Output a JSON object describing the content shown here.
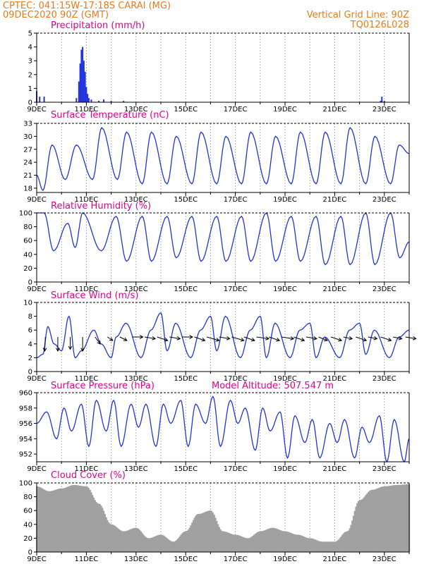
{
  "header": {
    "line1": "CPTEC:   041:15W-17:18S   CARAI (MG)",
    "line2": "09DEC2020 90Z (GMT)",
    "grid_note": "Vertical Grid Line: 90Z",
    "code": "TQ0126L028"
  },
  "colors": {
    "header": "#e87a1c",
    "title": "#e8008a",
    "series": "#2233dd",
    "cloud": "#a0a0a0",
    "grid": "#999999"
  },
  "x_labels": [
    "9DEC",
    "11DEC",
    "13DEC",
    "15DEC",
    "17DEC",
    "19DEC",
    "21DEC",
    "23DEC"
  ],
  "chart_data": [
    {
      "type": "bar",
      "title": "Precipitation (mm/h)",
      "ylim": [
        0,
        5
      ],
      "yticks": [
        0,
        1,
        2,
        3,
        4,
        5
      ],
      "x_days": [
        0.0,
        0.12,
        0.3,
        1.6,
        1.7,
        1.75,
        1.8,
        1.85,
        1.9,
        1.95,
        2.0,
        2.05,
        2.1,
        2.2,
        2.5,
        2.7,
        3.0,
        3.5,
        13.85,
        13.9,
        14.0
      ],
      "values": [
        0.8,
        0.4,
        0.4,
        0.3,
        1.5,
        2.8,
        3.8,
        4.0,
        3.0,
        2.2,
        1.1,
        0.6,
        0.3,
        0.2,
        0.1,
        0.2,
        0.1,
        0.1,
        0.1,
        0.4,
        0.1
      ]
    },
    {
      "type": "line",
      "title": "Surface Temperature (nC)",
      "ylim": [
        17,
        33
      ],
      "yticks": [
        18,
        21,
        24,
        27,
        30,
        33
      ],
      "extrema_days": [
        0.0,
        0.25,
        0.62,
        1.15,
        1.6,
        2.25,
        2.62,
        3.25,
        3.62,
        4.25,
        4.62,
        5.25,
        5.62,
        6.25,
        6.62,
        7.25,
        7.62,
        8.25,
        8.62,
        9.25,
        9.62,
        10.25,
        10.62,
        11.25,
        11.62,
        12.25,
        12.62,
        13.25,
        13.62,
        14.25,
        14.6,
        15.0
      ],
      "extrema_values": [
        21,
        17.5,
        28,
        20,
        28,
        20,
        32,
        20,
        31,
        19,
        31,
        19,
        30,
        19,
        31,
        19,
        30,
        19,
        31,
        19,
        30,
        19,
        31,
        19,
        31,
        19,
        32,
        19,
        30,
        19,
        28,
        26
      ]
    },
    {
      "type": "line",
      "title": "Relative Humidity (%)",
      "ylim": [
        0,
        100
      ],
      "yticks": [
        0,
        20,
        40,
        60,
        80,
        100
      ],
      "extrema_days": [
        0.0,
        0.3,
        0.68,
        1.25,
        1.55,
        1.85,
        2.6,
        3.2,
        3.62,
        4.25,
        4.62,
        5.25,
        5.62,
        6.25,
        6.62,
        7.25,
        7.62,
        8.25,
        8.62,
        9.25,
        9.62,
        10.25,
        10.62,
        11.25,
        11.62,
        12.25,
        12.62,
        13.25,
        13.62,
        14.25,
        14.62,
        15.0
      ],
      "extrema_values": [
        100,
        100,
        45,
        85,
        50,
        100,
        45,
        95,
        30,
        95,
        30,
        95,
        35,
        95,
        30,
        95,
        30,
        95,
        30,
        100,
        30,
        95,
        30,
        95,
        25,
        95,
        25,
        100,
        25,
        100,
        35,
        58
      ]
    },
    {
      "type": "line",
      "title": "Surface Wind (m/s)",
      "ylim": [
        0,
        10
      ],
      "yticks": [
        0,
        2,
        4,
        6,
        8,
        10
      ],
      "extrema_days": [
        0.0,
        0.25,
        0.45,
        0.7,
        1.0,
        1.3,
        1.55,
        1.8,
        2.3,
        2.6,
        3.0,
        3.2,
        3.6,
        4.2,
        4.6,
        5.0,
        5.25,
        5.6,
        6.2,
        6.6,
        7.0,
        7.25,
        7.6,
        8.2,
        8.6,
        9.0,
        9.25,
        9.6,
        10.2,
        10.6,
        11.0,
        11.25,
        11.6,
        12.2,
        12.6,
        13.0,
        13.25,
        13.6,
        14.2,
        14.6,
        15.0
      ],
      "extrema_values": [
        2,
        2.5,
        6.5,
        4,
        3,
        8,
        2,
        3,
        6,
        4,
        2,
        5,
        7,
        2,
        6,
        8.5,
        3,
        7,
        2,
        6,
        8,
        3,
        8,
        2,
        6,
        8,
        2,
        7,
        2,
        6,
        7,
        2,
        5,
        2,
        6,
        7,
        2.5,
        6,
        2,
        5,
        6
      ],
      "arrows": [
        {
          "day": 0.35,
          "u": -0.2,
          "v": -4.0
        },
        {
          "day": 0.85,
          "u": 0.0,
          "v": -4.0
        },
        {
          "day": 1.35,
          "u": 0.0,
          "v": -3.5
        },
        {
          "day": 1.85,
          "u": 0.0,
          "v": -4.0
        },
        {
          "day": 2.35,
          "u": 1.5,
          "v": -2.0
        },
        {
          "day": 2.85,
          "u": 1.5,
          "v": -1.0
        },
        {
          "day": 3.35,
          "u": 2.0,
          "v": -1.0
        },
        {
          "day": 3.85,
          "u": 3.0,
          "v": 0.0
        },
        {
          "day": 4.35,
          "u": 3.0,
          "v": -0.5
        },
        {
          "day": 4.85,
          "u": 3.0,
          "v": -1.0
        },
        {
          "day": 5.35,
          "u": 3.0,
          "v": -0.5
        },
        {
          "day": 5.85,
          "u": 3.0,
          "v": 0.0
        },
        {
          "day": 6.35,
          "u": 3.0,
          "v": -1.0
        },
        {
          "day": 6.85,
          "u": 3.5,
          "v": -1.0
        },
        {
          "day": 7.35,
          "u": 3.0,
          "v": -0.5
        },
        {
          "day": 7.85,
          "u": 3.5,
          "v": -1.0
        },
        {
          "day": 8.35,
          "u": 3.0,
          "v": -1.0
        },
        {
          "day": 8.85,
          "u": 3.5,
          "v": -0.5
        },
        {
          "day": 9.35,
          "u": 3.0,
          "v": -1.0
        },
        {
          "day": 9.85,
          "u": 3.5,
          "v": -0.5
        },
        {
          "day": 10.35,
          "u": 3.0,
          "v": -1.0
        },
        {
          "day": 10.85,
          "u": 3.0,
          "v": -0.5
        },
        {
          "day": 11.35,
          "u": 2.5,
          "v": -1.0
        },
        {
          "day": 11.85,
          "u": 3.0,
          "v": -1.0
        },
        {
          "day": 12.35,
          "u": 2.5,
          "v": -0.5
        },
        {
          "day": 12.85,
          "u": 3.0,
          "v": -1.0
        },
        {
          "day": 13.35,
          "u": 2.5,
          "v": -0.5
        },
        {
          "day": 13.85,
          "u": 3.0,
          "v": -1.0
        },
        {
          "day": 14.35,
          "u": 2.5,
          "v": -0.5
        },
        {
          "day": 14.85,
          "u": 3.0,
          "v": -0.5
        }
      ]
    },
    {
      "type": "line",
      "title": "Surface Pressure (hPa)",
      "annotation": "Model Altitude: 507.547 m",
      "ylim": [
        951,
        960
      ],
      "yticks": [
        952,
        954,
        956,
        958,
        960
      ],
      "extrema_days": [
        0.0,
        0.4,
        0.8,
        1.1,
        1.4,
        1.8,
        2.1,
        2.4,
        2.8,
        3.1,
        3.4,
        3.8,
        4.1,
        4.4,
        4.8,
        5.1,
        5.4,
        5.8,
        6.1,
        6.4,
        6.8,
        7.1,
        7.4,
        7.8,
        8.1,
        8.4,
        8.8,
        9.1,
        9.4,
        9.8,
        10.1,
        10.4,
        10.8,
        11.1,
        11.4,
        11.8,
        12.1,
        12.4,
        12.8,
        13.1,
        13.4,
        13.8,
        14.1,
        14.4,
        14.8,
        15.0
      ],
      "extrema_values": [
        956,
        957.5,
        954,
        958,
        955,
        958.5,
        953,
        959,
        955,
        959,
        953,
        958.5,
        955.5,
        958.5,
        953,
        958.5,
        956,
        959,
        953,
        958.5,
        956,
        959.5,
        953,
        959,
        956,
        958,
        952.5,
        958,
        955,
        957.5,
        951.5,
        957,
        953.5,
        956.5,
        951.5,
        956,
        953.5,
        956.5,
        951.5,
        955.5,
        953.5,
        957,
        951,
        956.5,
        951,
        954
      ]
    },
    {
      "type": "area",
      "title": "Cloud Cover (%)",
      "ylim": [
        0,
        100
      ],
      "yticks": [
        0,
        20,
        40,
        60,
        80,
        100
      ],
      "x_days": [
        0.0,
        0.5,
        1.0,
        1.5,
        2.0,
        2.5,
        3.0,
        3.5,
        4.0,
        4.5,
        5.0,
        5.5,
        6.0,
        6.5,
        7.0,
        7.5,
        8.0,
        8.5,
        9.0,
        9.5,
        10.0,
        10.5,
        11.0,
        11.5,
        12.0,
        12.5,
        13.0,
        13.5,
        14.0,
        14.5,
        15.0
      ],
      "values": [
        95,
        88,
        92,
        97,
        95,
        70,
        40,
        30,
        35,
        20,
        25,
        15,
        30,
        55,
        60,
        30,
        25,
        20,
        30,
        35,
        30,
        25,
        20,
        15,
        15,
        30,
        75,
        90,
        95,
        97,
        98
      ]
    }
  ]
}
